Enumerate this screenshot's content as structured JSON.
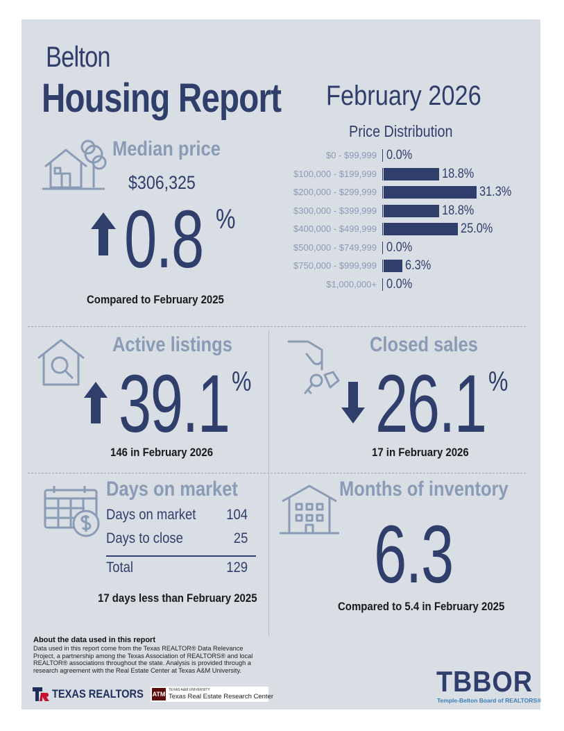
{
  "header": {
    "city": "Belton",
    "title": "Housing Report",
    "month": "February 2026"
  },
  "median_price": {
    "label": "Median price",
    "value": "$306,325",
    "change": "0.8",
    "percent_sign": "%",
    "direction": "up",
    "caption": "Compared to February 2025"
  },
  "price_distribution": {
    "title": "Price Distribution",
    "rows": [
      {
        "range": "$0 - $99,999",
        "percent": 0.0,
        "label": "0.0%"
      },
      {
        "range": "$100,000 - $199,999",
        "percent": 18.8,
        "label": "18.8%"
      },
      {
        "range": "$200,000 - $299,999",
        "percent": 31.3,
        "label": "31.3%"
      },
      {
        "range": "$300,000 - $399,999",
        "percent": 18.8,
        "label": "18.8%"
      },
      {
        "range": "$400,000 - $499,999",
        "percent": 25.0,
        "label": "25.0%"
      },
      {
        "range": "$500,000 - $749,999",
        "percent": 0.0,
        "label": "0.0%"
      },
      {
        "range": "$750,000 - $999,999",
        "percent": 6.3,
        "label": "6.3%"
      },
      {
        "range": "$1,000,000+",
        "percent": 0.0,
        "label": "0.0%"
      }
    ]
  },
  "active_listings": {
    "label": "Active listings",
    "change": "39.1",
    "percent_sign": "%",
    "direction": "up",
    "caption": "146 in February 2026"
  },
  "closed_sales": {
    "label": "Closed sales",
    "change": "26.1",
    "percent_sign": "%",
    "direction": "down",
    "caption": "17 in February 2026"
  },
  "days_on_market": {
    "label": "Days on market",
    "rows": [
      {
        "name": "Days on market",
        "value": "104"
      },
      {
        "name": "Days to close",
        "value": "25"
      }
    ],
    "total": {
      "name": "Total",
      "value": "129"
    },
    "caption": "17 days less than February 2025"
  },
  "months_of_inventory": {
    "label": "Months of inventory",
    "value": "6.3",
    "caption": "Compared to 5.4 in February 2025"
  },
  "about": {
    "title": "About the data used in this report",
    "text": "Data used in this report come from the Texas REALTOR® Data Relevance Project, a partnership among the Texas Association of REALTORS® and local REALTOR® associations throughout the state. Analysis is provided through a research agreement with the Real Estate Center at Texas A&M University."
  },
  "logos": {
    "texas_realtors": "TEXAS REALTORS",
    "tamu_small": "TEXAS A&M UNIVERSITY",
    "tamu_center": "Texas Real Estate Research Center",
    "tbbor": "TBBOR",
    "tbbor_sub": "Temple-Belton Board of REALTORS®"
  },
  "colors": {
    "navy": "#2f3e6b",
    "gray_blue": "#8a9bb5",
    "background": "#d9dde4"
  }
}
